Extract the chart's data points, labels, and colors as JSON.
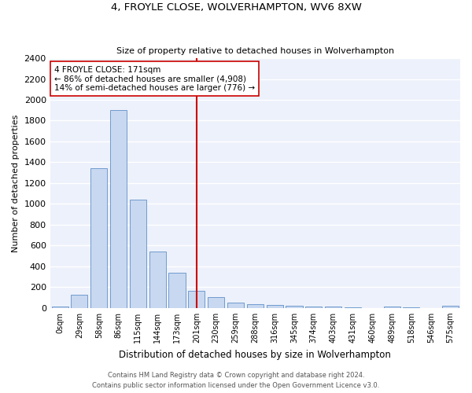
{
  "title1": "4, FROYLE CLOSE, WOLVERHAMPTON, WV6 8XW",
  "title2": "Size of property relative to detached houses in Wolverhampton",
  "xlabel": "Distribution of detached houses by size in Wolverhampton",
  "ylabel": "Number of detached properties",
  "bar_color": "#c8d8f0",
  "bar_edge_color": "#6090c8",
  "background_color": "#edf1fb",
  "grid_color": "white",
  "categories": [
    "0sqm",
    "29sqm",
    "58sqm",
    "86sqm",
    "115sqm",
    "144sqm",
    "173sqm",
    "201sqm",
    "230sqm",
    "259sqm",
    "288sqm",
    "316sqm",
    "345sqm",
    "374sqm",
    "403sqm",
    "431sqm",
    "460sqm",
    "489sqm",
    "518sqm",
    "546sqm",
    "575sqm"
  ],
  "values": [
    15,
    125,
    1340,
    1900,
    1040,
    545,
    340,
    165,
    105,
    55,
    35,
    25,
    20,
    15,
    10,
    5,
    0,
    15,
    5,
    0,
    20
  ],
  "ylim": [
    0,
    2400
  ],
  "yticks": [
    0,
    200,
    400,
    600,
    800,
    1000,
    1200,
    1400,
    1600,
    1800,
    2000,
    2200,
    2400
  ],
  "property_line_x": 7.0,
  "annotation_text": "4 FROYLE CLOSE: 171sqm\n← 86% of detached houses are smaller (4,908)\n14% of semi-detached houses are larger (776) →",
  "annotation_box_color": "white",
  "annotation_box_edge": "#cc0000",
  "vline_color": "#cc0000",
  "footer1": "Contains HM Land Registry data © Crown copyright and database right 2024.",
  "footer2": "Contains public sector information licensed under the Open Government Licence v3.0."
}
